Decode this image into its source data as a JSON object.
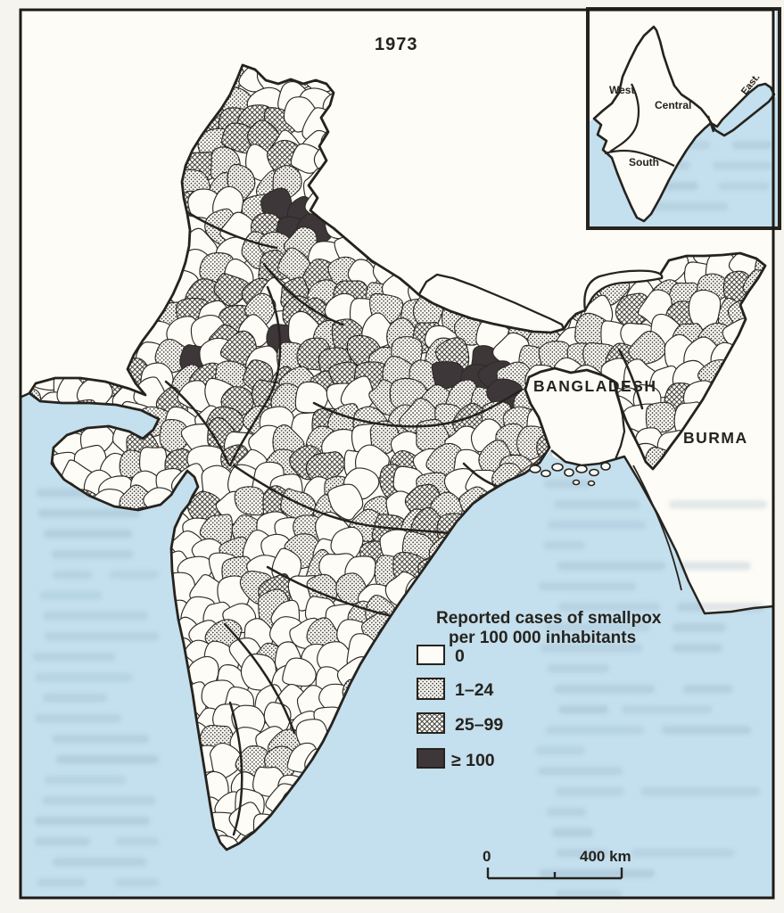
{
  "figure": {
    "year_label": "1973",
    "subject": "Reported cases of smallpox per 100 000 inhabitants",
    "region": "India"
  },
  "countries": {
    "bangladesh": "BANGLADESH",
    "burma": "BURMA"
  },
  "inset": {
    "west": "West",
    "central": "Central",
    "south": "South",
    "east": "East."
  },
  "legend": {
    "title_line1": "Reported cases of smallpox",
    "title_line2": "per 100 000 inhabitants",
    "items": [
      {
        "label": "0",
        "fill": "white"
      },
      {
        "label": "1–24",
        "fill": "stipple-dots"
      },
      {
        "label": "25–99",
        "fill": "crosshatch"
      },
      {
        "label": "≥ 100",
        "fill": "solid-dark"
      }
    ]
  },
  "scale_bar": {
    "zero_label": "0",
    "distance_label": "400 km"
  },
  "colors": {
    "sea": "#c4dfed",
    "land": "#fdfcf7",
    "ink": "#26231e",
    "dark_fill": "#3e3739",
    "page": "#f5f4ef"
  },
  "map_data": {
    "type": "choropleth",
    "title": "Reported cases of smallpox per 100 000 inhabitants, India, 1973",
    "classes": [
      {
        "range": "0",
        "pattern": "white"
      },
      {
        "range": "1–24",
        "pattern": "fine stipple dots"
      },
      {
        "range": "25–99",
        "pattern": "diamond crosshatch"
      },
      {
        "range": "≥ 100",
        "pattern": "solid dark"
      }
    ],
    "high_incidence_areas": [
      "Uttarakhand (north)",
      "Delhi vicinity",
      "eastern Rajasthan",
      "Bihar / West Bengal border cluster"
    ],
    "neighbor_labels": [
      "BANGLADESH",
      "BURMA"
    ],
    "inset_regions": [
      "West",
      "Central",
      "South",
      "East."
    ]
  }
}
